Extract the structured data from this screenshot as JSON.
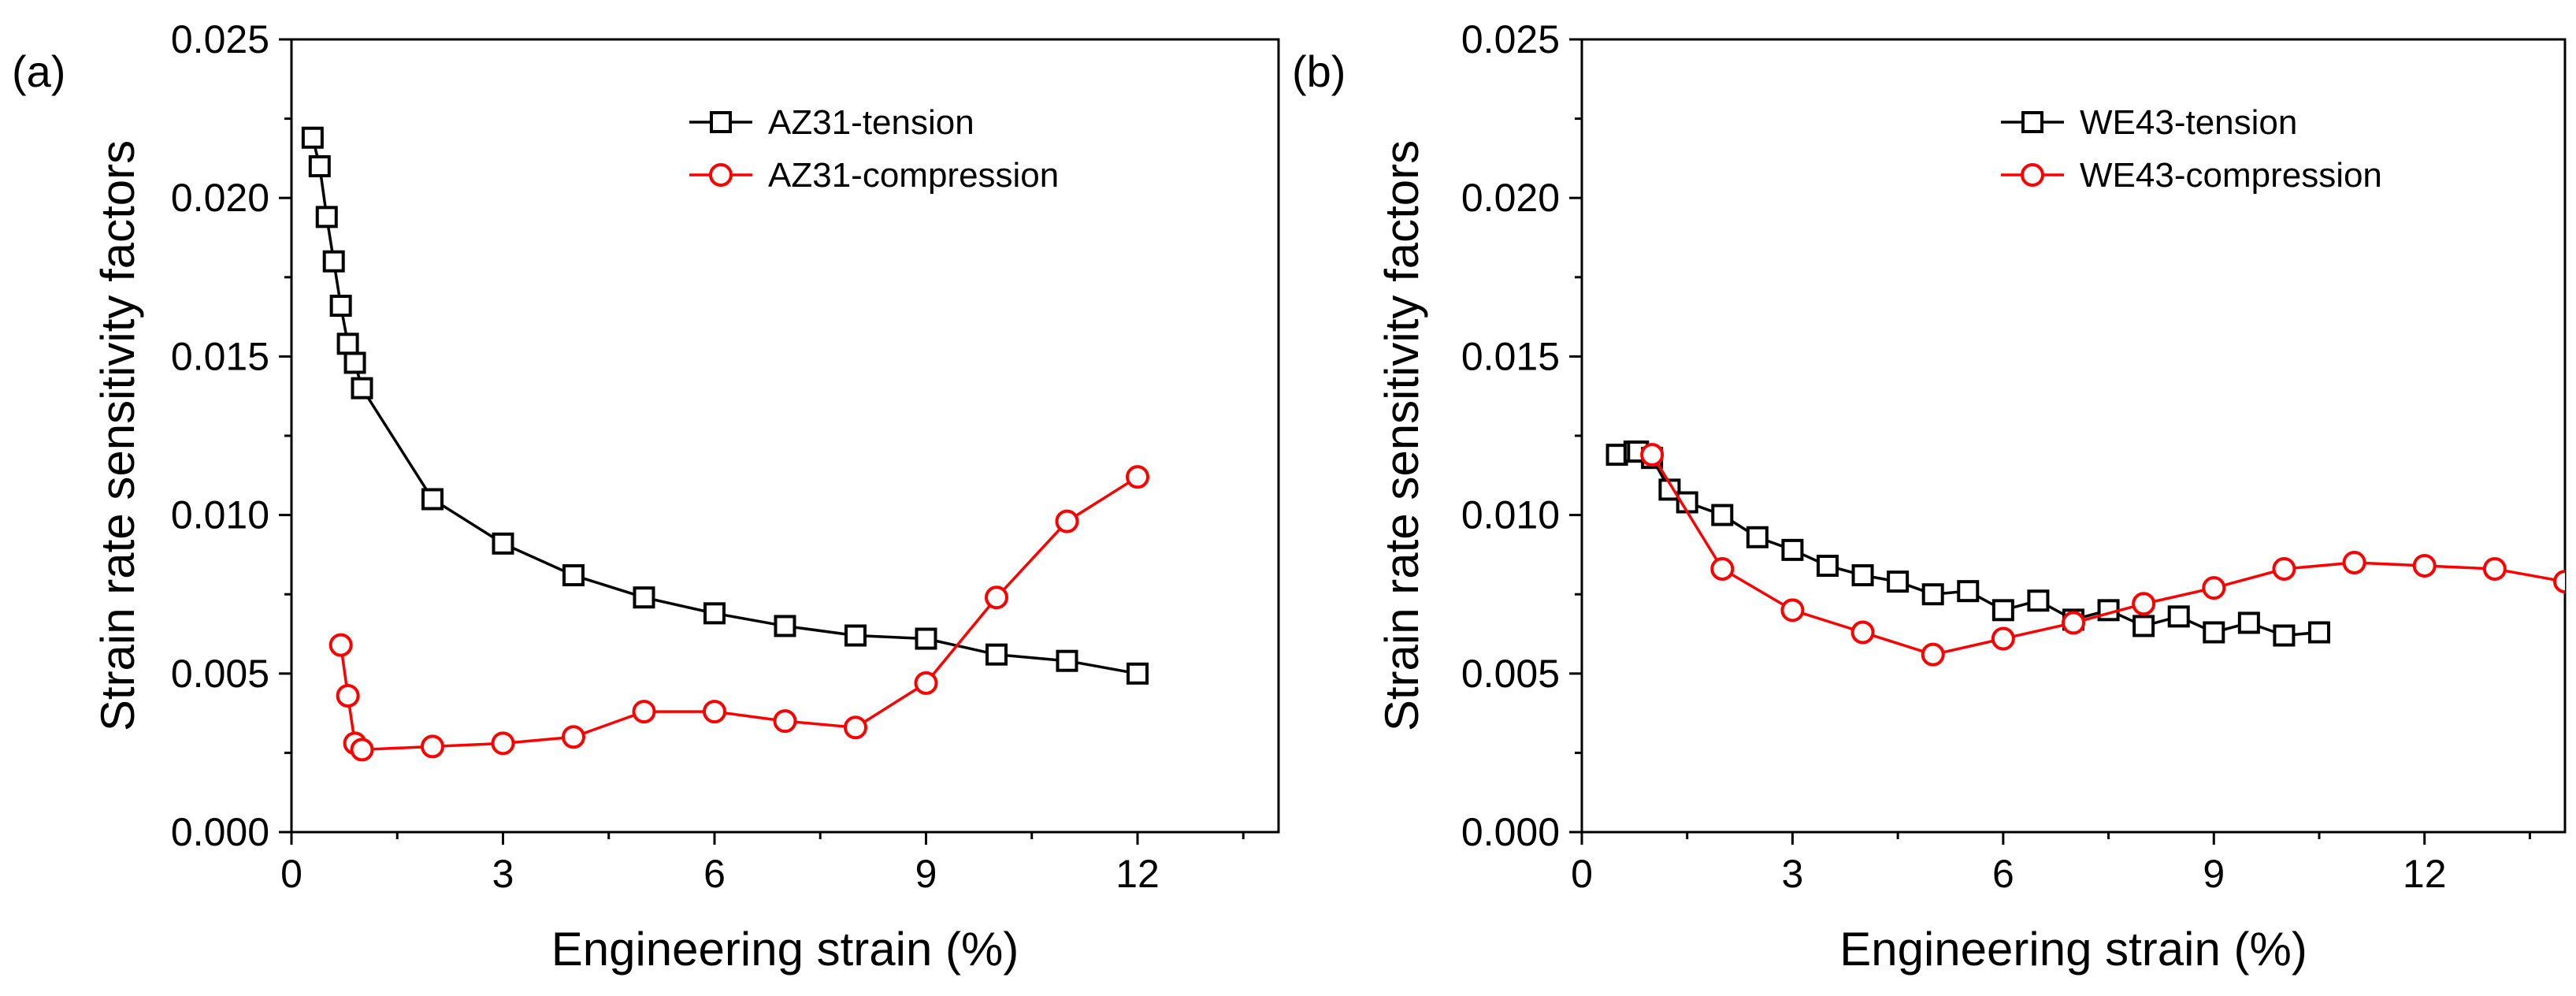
{
  "chart_data": [
    {
      "panel_label": "(a)",
      "type": "line",
      "xlabel": "Engineering strain (%)",
      "ylabel": "Strain rate sensitivity factors",
      "xlim": [
        0,
        14
      ],
      "ylim": [
        0,
        0.025
      ],
      "xticks": [
        0,
        3,
        6,
        9,
        12
      ],
      "xtick_labels": [
        "0",
        "3",
        "6",
        "9",
        "12"
      ],
      "yticks": [
        0,
        0.005,
        0.01,
        0.015,
        0.02,
        0.025
      ],
      "ytick_labels": [
        "0.000",
        "0.005",
        "0.010",
        "0.015",
        "0.020",
        "0.025"
      ],
      "legend_position": "top-right",
      "series": [
        {
          "name": "AZ31-tension",
          "color": "#000000",
          "marker": "square",
          "x": [
            0.3,
            0.4,
            0.5,
            0.6,
            0.7,
            0.8,
            0.9,
            1.0,
            2,
            3,
            4,
            5,
            6,
            7,
            8,
            9,
            10,
            11,
            12
          ],
          "y": [
            0.0219,
            0.021,
            0.0194,
            0.018,
            0.0166,
            0.0154,
            0.0148,
            0.014,
            0.0105,
            0.0091,
            0.0081,
            0.0074,
            0.0069,
            0.0065,
            0.0062,
            0.0061,
            0.0056,
            0.0054,
            0.005
          ]
        },
        {
          "name": "AZ31-compression",
          "color": "#ff0000",
          "marker": "circle",
          "x": [
            0.7,
            0.8,
            0.9,
            1.0,
            2,
            3,
            4,
            5,
            6,
            7,
            8,
            9,
            10,
            11,
            12
          ],
          "y": [
            0.0059,
            0.0043,
            0.0028,
            0.0026,
            0.0027,
            0.0028,
            0.003,
            0.0038,
            0.0038,
            0.0035,
            0.0033,
            0.0047,
            0.0074,
            0.0098,
            0.0112
          ]
        }
      ]
    },
    {
      "panel_label": "(b)",
      "type": "line",
      "xlabel": "Engineering strain (%)",
      "ylabel": "Strain rate sensitivity factors",
      "xlim": [
        0,
        14
      ],
      "ylim": [
        0,
        0.025
      ],
      "xticks": [
        0,
        3,
        6,
        9,
        12
      ],
      "xtick_labels": [
        "0",
        "3",
        "6",
        "9",
        "12"
      ],
      "yticks": [
        0,
        0.005,
        0.01,
        0.015,
        0.02,
        0.025
      ],
      "ytick_labels": [
        "0.000",
        "0.005",
        "0.010",
        "0.015",
        "0.020",
        "0.025"
      ],
      "legend_position": "top-right",
      "series": [
        {
          "name": "WE43-tension",
          "color": "#000000",
          "marker": "square",
          "x": [
            0.5,
            0.75,
            0.8,
            1.0,
            1.25,
            1.5,
            2,
            2.5,
            3,
            3.5,
            4,
            4.5,
            5,
            5.5,
            6,
            6.5,
            7,
            7.5,
            8,
            8.5,
            9,
            9.5,
            10,
            10.5
          ],
          "y": [
            0.0119,
            0.012,
            0.012,
            0.0118,
            0.0108,
            0.0104,
            0.01,
            0.0093,
            0.0089,
            0.0084,
            0.0081,
            0.0079,
            0.0075,
            0.0076,
            0.007,
            0.0073,
            0.0067,
            0.007,
            0.0065,
            0.0068,
            0.0063,
            0.0066,
            0.0062,
            0.0063
          ]
        },
        {
          "name": "WE43-compression",
          "color": "#ff0000",
          "marker": "circle",
          "x": [
            1.0,
            2,
            3,
            4,
            5,
            6,
            7,
            8,
            9,
            10,
            11,
            12,
            13,
            14
          ],
          "y": [
            0.0119,
            0.0083,
            0.007,
            0.0063,
            0.0056,
            0.0061,
            0.0066,
            0.0072,
            0.0077,
            0.0083,
            0.0085,
            0.0084,
            0.0083,
            0.0079
          ]
        }
      ]
    }
  ]
}
